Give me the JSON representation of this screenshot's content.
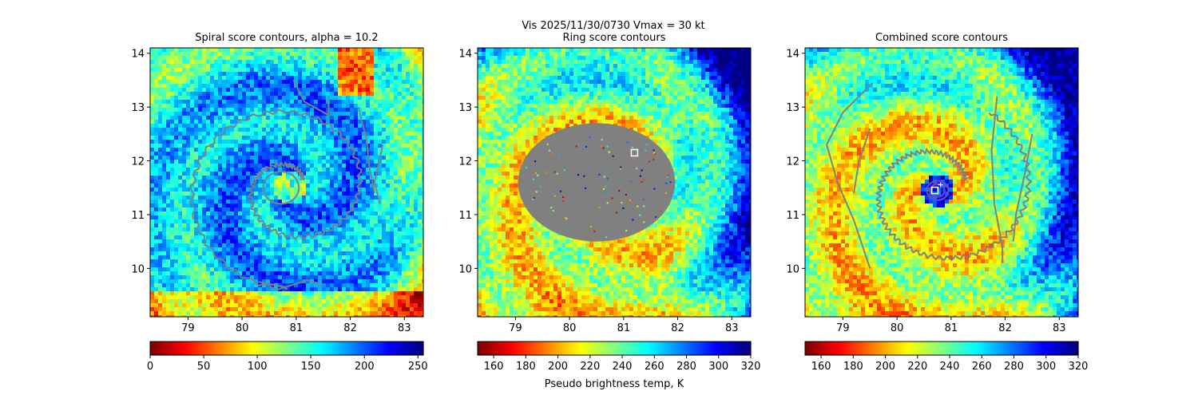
{
  "suptitle": "Vis  2025/11/30/0730    Vmax = 30 kt",
  "colors": {
    "contour": "#808080",
    "marker": "#ffffff",
    "ring_mask": "#808080",
    "combined_ring": "#8a3fb2"
  },
  "chart_data": [
    {
      "type": "heatmap",
      "title": "Spiral score contours, alpha = 10.2",
      "xlim": [
        78.3,
        83.35
      ],
      "ylim": [
        9.1,
        14.1
      ],
      "xticks": [
        "79",
        "80",
        "81",
        "82",
        "83"
      ],
      "yticks": [
        "10",
        "11",
        "12",
        "13",
        "14"
      ],
      "colorbar": {
        "min": 0,
        "max": 255,
        "cmap": "jet_r",
        "ticks": [
          "0",
          "50",
          "100",
          "150",
          "200",
          "250"
        ],
        "label": ""
      },
      "center": [
        80.9,
        11.5
      ],
      "contours": [
        {
          "kind": "spiral",
          "r0": 0.25,
          "r1": 1.9,
          "theta0": 0.6,
          "turns": 1.65
        },
        {
          "kind": "ellipse",
          "cx": 80.72,
          "cy": 11.5,
          "rx": 0.33,
          "ry": 0.3
        },
        {
          "kind": "line",
          "points": [
            [
              82.15,
              13.0
            ],
            [
              82.3,
              12.4
            ],
            [
              82.35,
              11.9
            ],
            [
              82.45,
              11.4
            ]
          ]
        },
        {
          "kind": "line",
          "points": [
            [
              82.6,
              12.3
            ],
            [
              82.45,
              11.6
            ],
            [
              82.55,
              11.2
            ]
          ]
        },
        {
          "kind": "line",
          "points": [
            [
              80.95,
              13.5
            ],
            [
              81.15,
              13.1
            ],
            [
              81.6,
              12.85
            ],
            [
              81.6,
              13.2
            ]
          ]
        },
        {
          "kind": "line",
          "points": [
            [
              80.3,
              9.75
            ],
            [
              80.8,
              9.65
            ],
            [
              81.2,
              9.78
            ],
            [
              81.5,
              9.7
            ]
          ]
        }
      ],
      "markers": []
    },
    {
      "type": "heatmap",
      "title": "Ring score contours",
      "xlim": [
        78.3,
        83.35
      ],
      "ylim": [
        9.1,
        14.1
      ],
      "xticks": [
        "79",
        "80",
        "81",
        "82",
        "83"
      ],
      "yticks": [
        "10",
        "11",
        "12",
        "13",
        "14"
      ],
      "colorbar": {
        "min": 150,
        "max": 320,
        "cmap": "jet_r",
        "ticks": [
          "160",
          "180",
          "200",
          "220",
          "240",
          "260",
          "280",
          "300",
          "320"
        ],
        "label": "Pseudo brightness temp, K"
      },
      "center": [
        80.9,
        11.5
      ],
      "mask": {
        "cx": 80.5,
        "cy": 11.6,
        "rx": 1.45,
        "ry": 1.1
      },
      "contours": [],
      "markers": [
        {
          "x": 81.2,
          "y": 12.15
        }
      ]
    },
    {
      "type": "heatmap",
      "title": "Combined score contours",
      "xlim": [
        78.3,
        83.35
      ],
      "ylim": [
        9.1,
        14.1
      ],
      "xticks": [
        "79",
        "80",
        "81",
        "82",
        "83"
      ],
      "yticks": [
        "10",
        "11",
        "12",
        "13",
        "14"
      ],
      "colorbar": {
        "min": 150,
        "max": 320,
        "cmap": "jet_r",
        "ticks": [
          "160",
          "180",
          "200",
          "220",
          "240",
          "260",
          "280",
          "300",
          "320"
        ],
        "label": ""
      },
      "center": [
        80.75,
        11.45
      ],
      "contours": [
        {
          "kind": "spiral",
          "r0": 0.5,
          "r1": 1.7,
          "theta0": 0.4,
          "turns": 1.1
        },
        {
          "kind": "ellipse",
          "cx": 80.75,
          "cy": 11.45,
          "rx": 0.2,
          "ry": 0.18
        },
        {
          "kind": "ellipse",
          "cx": 80.75,
          "cy": 11.45,
          "rx": 0.13,
          "ry": 0.12
        },
        {
          "kind": "line",
          "points": [
            [
              79.55,
              13.45
            ],
            [
              79.0,
              12.9
            ],
            [
              78.7,
              12.3
            ],
            [
              78.9,
              11.6
            ],
            [
              79.2,
              10.9
            ],
            [
              79.5,
              10.0
            ]
          ]
        },
        {
          "kind": "line",
          "points": [
            [
              79.2,
              11.4
            ],
            [
              79.3,
              12.0
            ],
            [
              79.5,
              12.6
            ]
          ]
        },
        {
          "kind": "line",
          "points": [
            [
              81.85,
              13.2
            ],
            [
              81.75,
              12.2
            ],
            [
              81.8,
              11.2
            ],
            [
              81.95,
              10.4
            ],
            [
              81.95,
              10.1
            ]
          ]
        },
        {
          "kind": "line",
          "points": [
            [
              82.5,
              12.5
            ],
            [
              82.35,
              11.7
            ],
            [
              82.2,
              11.0
            ],
            [
              82.15,
              10.5
            ]
          ]
        }
      ],
      "markers": [
        {
          "x": 80.7,
          "y": 11.45
        }
      ]
    }
  ]
}
